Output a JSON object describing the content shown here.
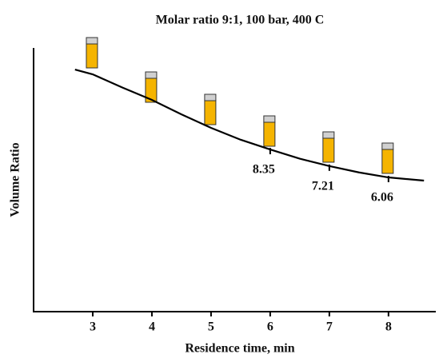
{
  "chart_data": {
    "type": "line",
    "title": "Molar ratio 9:1, 100 bar, 400 C",
    "x_label": "Residence time, min",
    "y_label": "Volume Ratio",
    "x": [
      2.7,
      3,
      3.5,
      4,
      4.5,
      5,
      5.5,
      6,
      6.5,
      7,
      7.5,
      8,
      8.6
    ],
    "series": [
      {
        "color": "#000000",
        "values": [
          9.18,
          9.0,
          8.5,
          8.03,
          7.48,
          6.97,
          6.52,
          6.15,
          5.8,
          5.52,
          5.28,
          5.09,
          4.97
        ]
      }
    ],
    "annotations": [
      {
        "x": 6,
        "text": "8.35"
      },
      {
        "x": 7,
        "text": "7.21"
      },
      {
        "x": 8,
        "text": "6.06"
      }
    ],
    "xlim": [
      2,
      8.8
    ],
    "xticks": [
      3,
      4,
      5,
      6,
      7,
      8
    ],
    "ylim": [
      0,
      10
    ],
    "grid": false
  }
}
